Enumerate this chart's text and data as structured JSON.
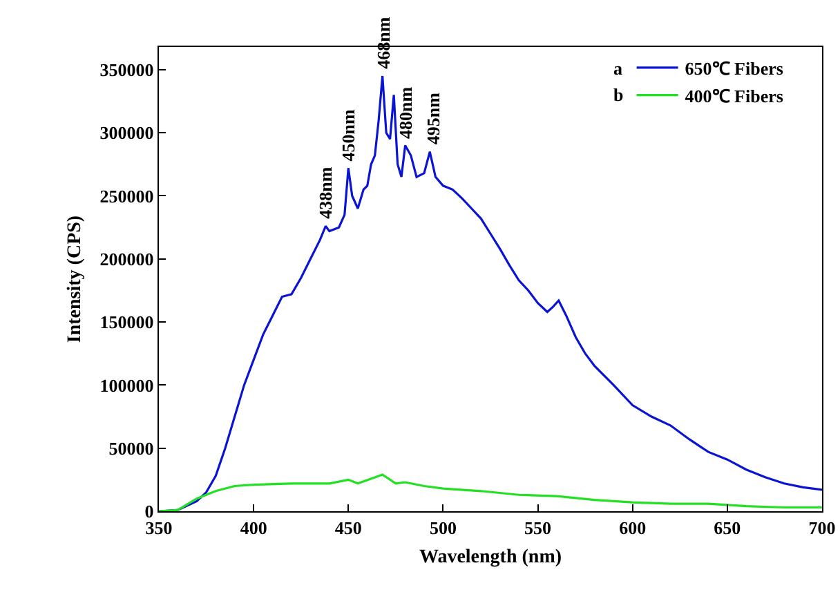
{
  "chart_data": {
    "type": "line",
    "xlabel": "Wavelength (nm)",
    "ylabel": "Intensity (CPS)",
    "xlim": [
      350,
      700
    ],
    "xticks": [
      350,
      400,
      450,
      500,
      550,
      600,
      650,
      700
    ],
    "ylim": [
      0,
      368000
    ],
    "yticks": [
      0,
      50000,
      100000,
      150000,
      200000,
      250000,
      300000,
      350000
    ],
    "grid": false,
    "legend": "top right",
    "line_style": "solid",
    "marker": "none",
    "series": [
      {
        "name": "650℃ Fibers",
        "color": "#0a14d2",
        "x": [
          350,
          360,
          370,
          375,
          380,
          385,
          390,
          395,
          400,
          405,
          410,
          415,
          420,
          425,
          430,
          435,
          438,
          440,
          445,
          448,
          450,
          452,
          455,
          458,
          460,
          462,
          464,
          466,
          468,
          470,
          472,
          474,
          476,
          478,
          480,
          483,
          486,
          490,
          493,
          496,
          500,
          505,
          510,
          515,
          520,
          525,
          530,
          535,
          540,
          545,
          550,
          555,
          558,
          561,
          565,
          570,
          575,
          580,
          590,
          600,
          610,
          620,
          630,
          640,
          650,
          660,
          670,
          680,
          690,
          700
        ],
        "values": [
          0,
          1000,
          8000,
          15000,
          28000,
          50000,
          75000,
          100000,
          120000,
          140000,
          155000,
          170000,
          172000,
          185000,
          200000,
          215000,
          226000,
          222000,
          225000,
          235000,
          272000,
          250000,
          240000,
          255000,
          258000,
          275000,
          282000,
          310000,
          345000,
          300000,
          295000,
          330000,
          275000,
          265000,
          290000,
          282000,
          265000,
          268000,
          285000,
          265000,
          258000,
          255000,
          248000,
          240000,
          232000,
          220000,
          208000,
          195000,
          183000,
          175000,
          165000,
          158000,
          162000,
          167000,
          155000,
          138000,
          125000,
          115000,
          100000,
          84000,
          75000,
          68000,
          57000,
          47000,
          41000,
          33000,
          27000,
          22000,
          19000,
          17000
        ]
      },
      {
        "name": "400℃ Fibers",
        "color": "#22e022",
        "x": [
          350,
          360,
          370,
          380,
          390,
          400,
          420,
          440,
          450,
          455,
          468,
          475,
          480,
          490,
          500,
          520,
          540,
          560,
          580,
          600,
          620,
          640,
          660,
          680,
          700
        ],
        "values": [
          0,
          1000,
          10000,
          16000,
          20000,
          21000,
          22000,
          22000,
          25000,
          22000,
          29000,
          22000,
          23000,
          20000,
          18000,
          16000,
          13000,
          12000,
          9000,
          7000,
          6000,
          6000,
          4000,
          3000,
          3000
        ]
      }
    ],
    "annotations": [
      {
        "text": "438nm",
        "x": 438,
        "y": 226000
      },
      {
        "text": "450nm",
        "x": 450,
        "y": 272000
      },
      {
        "text": "468nm",
        "x": 468,
        "y": 345000
      },
      {
        "text": "480nm",
        "x": 480,
        "y": 290000
      },
      {
        "text": "495nm",
        "x": 495,
        "y": 285000
      },
      "a",
      "b"
    ]
  }
}
